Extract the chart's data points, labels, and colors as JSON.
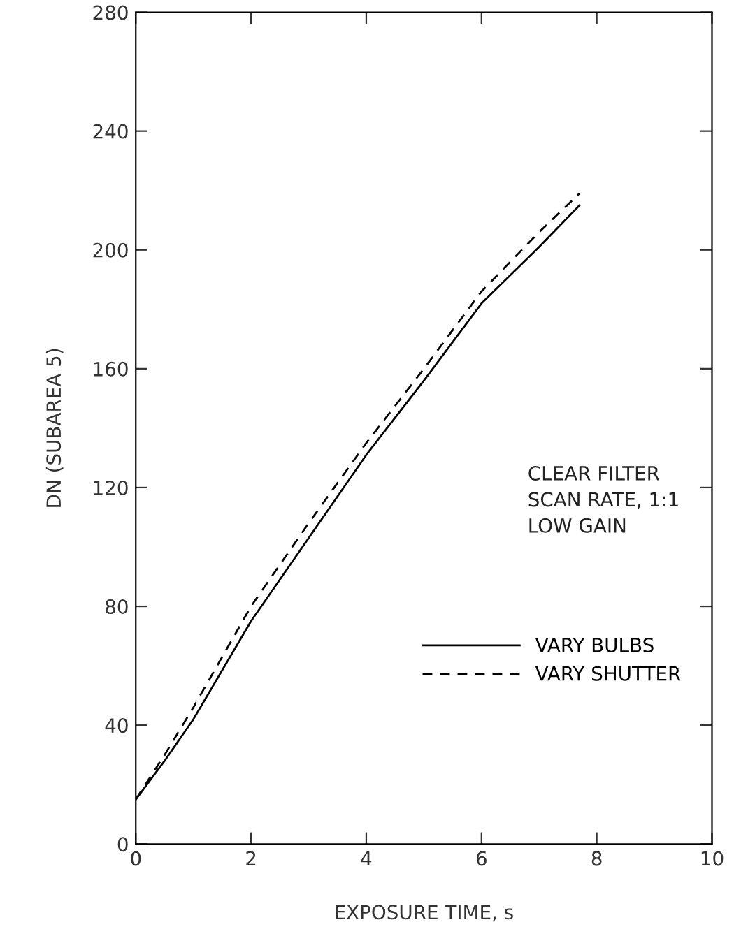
{
  "chart_data": {
    "type": "line",
    "xlabel": "EXPOSURE TIME, s",
    "ylabel": "DN (SUBAREA 5)",
    "xlim": [
      0,
      10
    ],
    "xticks": [
      0,
      2,
      4,
      6,
      8,
      10
    ],
    "ylim": [
      0,
      280
    ],
    "yticks": [
      0,
      40,
      80,
      120,
      160,
      200,
      240,
      280
    ],
    "grid": false,
    "legend": "right",
    "marker": "none",
    "annotations": [
      "CLEAR FILTER\nSCAN RATE, 1:1\nLOW GAIN"
    ],
    "series": [
      {
        "name": "VARY BULBS",
        "color": "#000000",
        "line_style": "solid",
        "x": [
          0,
          0.5,
          1,
          2,
          3,
          4,
          5,
          6,
          7,
          7.7
        ],
        "values": [
          15,
          28,
          42,
          75,
          103,
          131,
          156,
          182,
          201,
          215
        ]
      },
      {
        "name": "VARY SHUTTER",
        "color": "#000000",
        "line_style": "dashed",
        "x": [
          0,
          0.5,
          1,
          2,
          3,
          4,
          5,
          6,
          7,
          7.7
        ],
        "values": [
          15,
          30,
          46,
          80,
          108,
          135,
          160,
          186,
          206,
          219
        ]
      }
    ]
  }
}
